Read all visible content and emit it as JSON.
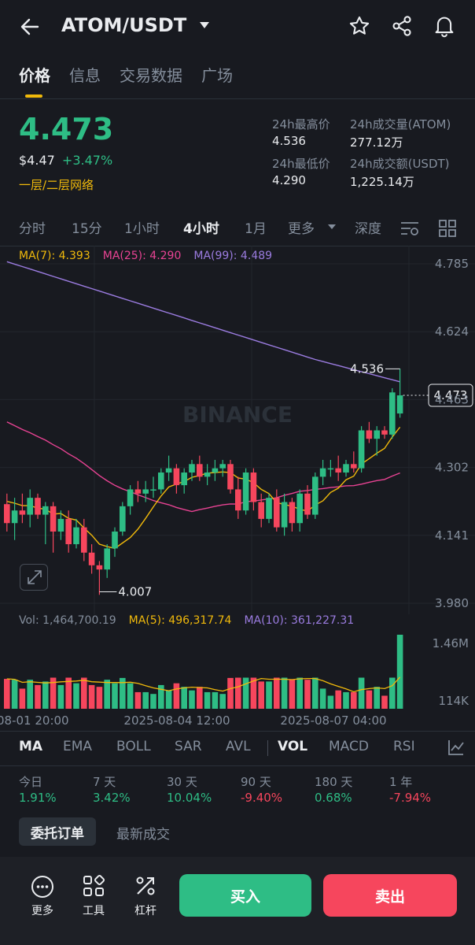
{
  "header": {
    "pair": "ATOM/USDT",
    "icons": [
      "back-arrow-icon",
      "caret-down-icon",
      "star-icon",
      "share-icon",
      "bell-icon"
    ]
  },
  "tabs": [
    "价格",
    "信息",
    "交易数据",
    "广场"
  ],
  "price": {
    "last": "4.473",
    "usd": "$4.47",
    "change": "+3.47%",
    "tag": "一层/二层网络"
  },
  "stats": {
    "high_label": "24h最高价",
    "high": "4.536",
    "low_label": "24h最低价",
    "low": "4.290",
    "vol_label": "24h成交量(ATOM)",
    "vol": "277.12万",
    "amt_label": "24h成交额(USDT)",
    "amt": "1,225.14万"
  },
  "intervals": [
    "分时",
    "15分",
    "1小时",
    "4小时",
    "1月",
    "更多",
    "深度"
  ],
  "ma_legend": {
    "ma7": "MA(7): 4.393",
    "ma25": "MA(25): 4.290",
    "ma99": "MA(99): 4.489"
  },
  "chart_data": {
    "type": "candlestick",
    "y_ticks": [
      "4.785",
      "4.624",
      "4.463",
      "4.302",
      "4.141",
      "3.980"
    ],
    "ylim": [
      3.98,
      4.785
    ],
    "current_price": "4.473",
    "high_marker": "4.536",
    "low_marker": "4.007",
    "watermark": "BINANCE",
    "candles": [
      [
        4.215,
        4.24,
        4.15,
        4.17
      ],
      [
        4.17,
        4.23,
        4.13,
        4.2
      ],
      [
        4.2,
        4.24,
        4.17,
        4.19
      ],
      [
        4.19,
        4.25,
        4.16,
        4.23
      ],
      [
        4.23,
        4.24,
        4.18,
        4.19
      ],
      [
        4.19,
        4.22,
        4.12,
        4.21
      ],
      [
        4.21,
        4.22,
        4.1,
        4.15
      ],
      [
        4.15,
        4.2,
        4.13,
        4.18
      ],
      [
        4.18,
        4.2,
        4.1,
        4.12
      ],
      [
        4.12,
        4.18,
        4.11,
        4.16
      ],
      [
        4.16,
        4.18,
        4.08,
        4.1
      ],
      [
        4.1,
        4.12,
        4.05,
        4.07
      ],
      [
        4.07,
        4.08,
        4.0,
        4.06
      ],
      [
        4.06,
        4.12,
        4.04,
        4.11
      ],
      [
        4.11,
        4.16,
        4.09,
        4.15
      ],
      [
        4.15,
        4.22,
        4.14,
        4.21
      ],
      [
        4.21,
        4.26,
        4.19,
        4.25
      ],
      [
        4.25,
        4.27,
        4.22,
        4.24
      ],
      [
        4.24,
        4.27,
        4.22,
        4.25
      ],
      [
        4.25,
        4.28,
        4.23,
        4.25
      ],
      [
        4.25,
        4.3,
        4.24,
        4.29
      ],
      [
        4.29,
        4.33,
        4.27,
        4.3
      ],
      [
        4.3,
        4.31,
        4.24,
        4.26
      ],
      [
        4.26,
        4.3,
        4.24,
        4.29
      ],
      [
        4.29,
        4.32,
        4.27,
        4.31
      ],
      [
        4.31,
        4.33,
        4.27,
        4.28
      ],
      [
        4.28,
        4.31,
        4.26,
        4.29
      ],
      [
        4.29,
        4.32,
        4.27,
        4.3
      ],
      [
        4.3,
        4.32,
        4.28,
        4.31
      ],
      [
        4.31,
        4.32,
        4.24,
        4.25
      ],
      [
        4.25,
        4.28,
        4.18,
        4.2
      ],
      [
        4.2,
        4.3,
        4.19,
        4.29
      ],
      [
        4.29,
        4.3,
        4.2,
        4.22
      ],
      [
        4.22,
        4.24,
        4.16,
        4.18
      ],
      [
        4.18,
        4.24,
        4.17,
        4.23
      ],
      [
        4.23,
        4.25,
        4.15,
        4.16
      ],
      [
        4.16,
        4.24,
        4.14,
        4.22
      ],
      [
        4.22,
        4.23,
        4.15,
        4.17
      ],
      [
        4.17,
        4.25,
        4.15,
        4.24
      ],
      [
        4.24,
        4.26,
        4.18,
        4.19
      ],
      [
        4.19,
        4.29,
        4.18,
        4.28
      ],
      [
        4.28,
        4.32,
        4.26,
        4.3
      ],
      [
        4.3,
        4.32,
        4.28,
        4.3
      ],
      [
        4.3,
        4.33,
        4.27,
        4.29
      ],
      [
        4.29,
        4.32,
        4.28,
        4.31
      ],
      [
        4.31,
        4.34,
        4.29,
        4.3
      ],
      [
        4.3,
        4.4,
        4.29,
        4.39
      ],
      [
        4.39,
        4.41,
        4.36,
        4.37
      ],
      [
        4.37,
        4.4,
        4.33,
        4.39
      ],
      [
        4.39,
        4.4,
        4.37,
        4.38
      ],
      [
        4.38,
        4.49,
        4.37,
        4.48
      ],
      [
        4.43,
        4.536,
        4.42,
        4.473
      ]
    ]
  },
  "volume": {
    "vol_label": "Vol: 1,464,700.19",
    "ma5_label": "MA(5): 496,317.74",
    "ma10_label": "MA(10): 361,227.31",
    "y_ticks": [
      "1.46M",
      "114K"
    ],
    "x_ticks": [
      "08-01 20:00",
      "2025-08-04 12:00",
      "2025-08-07 04:00"
    ]
  },
  "indicators": [
    "MA",
    "EMA",
    "BOLL",
    "SAR",
    "AVL",
    "VOL",
    "MACD",
    "RSI"
  ],
  "performance": [
    {
      "label": "今日",
      "value": "1.91%",
      "up": true
    },
    {
      "label": "7 天",
      "value": "3.42%",
      "up": true
    },
    {
      "label": "30 天",
      "value": "10.04%",
      "up": true
    },
    {
      "label": "90 天",
      "value": "-9.40%",
      "up": false
    },
    {
      "label": "180 天",
      "value": "0.68%",
      "up": true
    },
    {
      "label": "1 年",
      "value": "-7.94%",
      "up": false
    }
  ],
  "order_tabs": [
    "委托订单",
    "最新成交"
  ],
  "bottom": {
    "more": "更多",
    "tools": "工具",
    "leverage": "杠杆",
    "buy": "买入",
    "sell": "卖出"
  },
  "colors": {
    "up": "#2EBD85",
    "down": "#F6465D",
    "accent": "#F0B90B",
    "ma7": "#F0B90B",
    "ma25": "#E84393",
    "ma99": "#9B7CE0"
  }
}
